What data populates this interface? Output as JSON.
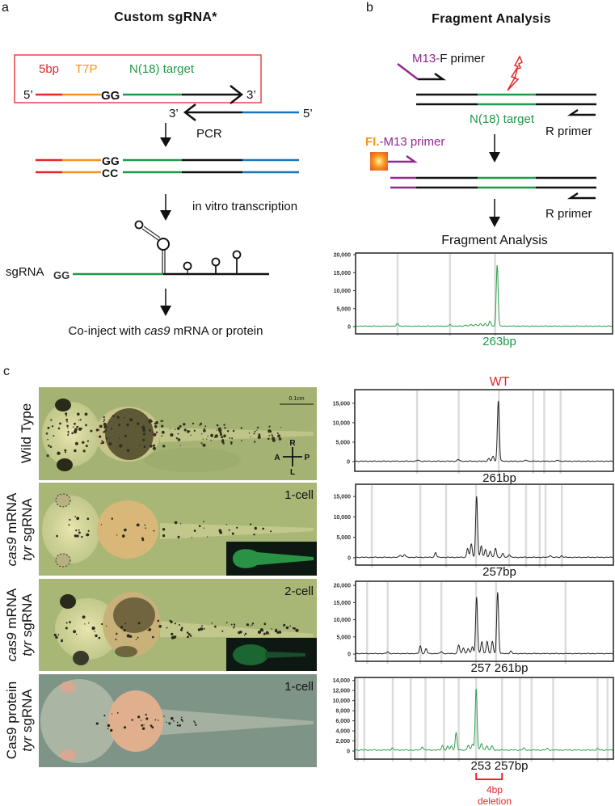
{
  "panel_a": {
    "letter": "a",
    "title": "Custom sgRNA*",
    "label_5bp": "5bp",
    "label_t7p": "T7P",
    "label_target": "N(18) target",
    "five_prime": "5’",
    "three_prime": "3’",
    "gg": "GG",
    "cc": "CC",
    "pcr": "PCR",
    "ivt": "in vitro transcription",
    "sgrna": "sgRNA",
    "coinject_pre": "Co-inject with ",
    "coinject_italic": "cas9",
    "coinject_post": " mRNA or protein"
  },
  "panel_b": {
    "letter": "b",
    "title": "Fragment Analysis",
    "m13f_prefix": "M13-",
    "m13f_suffix": "F primer",
    "target": "N(18) target",
    "r_primer": "R primer",
    "fl": "FI.",
    "fl_suffix": "-M13 primer",
    "fragment_analysis": "Fragment Analysis"
  },
  "panel_c": {
    "letter": "c",
    "wt_label": "WT",
    "scale_bar": "0.1cm",
    "compass": {
      "r": "R",
      "l": "L",
      "a": "A",
      "p": "P"
    },
    "rows": [
      {
        "line1": "Wild Type",
        "stage": ""
      },
      {
        "line1_italic": "cas9",
        "line1": " mRNA",
        "line2_italic": "tyr",
        "line2": " sgRNA",
        "stage": "1-cell"
      },
      {
        "line1_italic": "cas9",
        "line1": " mRNA",
        "line2_italic": "tyr",
        "line2": " sgRNA",
        "stage": "2-cell"
      },
      {
        "line1": "Cas9 protein",
        "line2_italic": "tyr",
        "line2": " sgRNA",
        "stage": "1-cell"
      }
    ],
    "deletion_line1": "4bp",
    "deletion_line2": "deletion"
  },
  "colors": {
    "red": "#e8262b",
    "orange": "#f7941d",
    "green": "#1e9a48",
    "blue": "#1b75bc",
    "purple": "#92278f",
    "trace_green": "#2e9e4a",
    "trace_black": "#222222",
    "bin_gray": "#dcdcdc"
  },
  "chart_data": [
    {
      "type": "line",
      "title": "Fragment Analysis",
      "peak_label": "263bp",
      "label_color": "#1e9a48",
      "trace_color": "#2e9e4a",
      "xlim": [
        236,
        285
      ],
      "ylim": [
        -2000,
        20450
      ],
      "yticks": [
        0,
        5000,
        10000,
        15000,
        20000
      ],
      "baseline": 150,
      "peaks": [
        [
          263,
          17000
        ],
        [
          261.6,
          1400
        ],
        [
          260.7,
          800
        ],
        [
          259.8,
          700
        ],
        [
          258.9,
          600
        ],
        [
          258,
          500
        ],
        [
          257,
          350
        ],
        [
          254,
          350
        ],
        [
          244,
          700
        ]
      ],
      "bins": [
        244,
        254,
        262.6
      ]
    },
    {
      "type": "line",
      "title": "WT",
      "peak_label": "261bp",
      "label_color": "#111111",
      "trace_color": "#222222",
      "xlim": [
        234,
        283
      ],
      "ylim": [
        -2500,
        18500
      ],
      "yticks": [
        0,
        5000,
        10000,
        15000
      ],
      "baseline": 100,
      "peaks": [
        [
          261.2,
          15500
        ],
        [
          260.2,
          1200
        ],
        [
          259.4,
          700
        ],
        [
          253.6,
          500
        ],
        [
          246,
          300
        ],
        [
          266.5,
          300
        ],
        [
          272.5,
          250
        ]
      ],
      "bins": [
        245.8,
        253.7,
        261.3,
        267.8,
        269.9,
        273
      ]
    },
    {
      "type": "line",
      "title": "cas9 mRNA tyr sgRNA 1-cell",
      "peak_label": "257bp",
      "label_color": "#111111",
      "trace_color": "#222222",
      "xlim": [
        234,
        283
      ],
      "ylim": [
        -1800,
        18000
      ],
      "yticks": [
        0,
        5000,
        10000,
        15000
      ],
      "baseline": 100,
      "peaks": [
        [
          257,
          15000
        ],
        [
          255.3,
          2200
        ],
        [
          256,
          3200
        ],
        [
          257.9,
          2800
        ],
        [
          258.7,
          2000
        ],
        [
          259.6,
          1500
        ],
        [
          260.6,
          2300
        ],
        [
          262,
          900
        ],
        [
          263.2,
          700
        ],
        [
          249.2,
          1200
        ],
        [
          242.5,
          600
        ],
        [
          243.3,
          700
        ],
        [
          271,
          500
        ],
        [
          273.2,
          400
        ]
      ],
      "bins": [
        237.1,
        246.3,
        251.2,
        256.9,
        263.2,
        266.4,
        269,
        270.1,
        273.2
      ]
    },
    {
      "type": "line",
      "title": "cas9 mRNA tyr sgRNA 2-cell",
      "peak_label": "257 261bp",
      "label_color": "#111111",
      "trace_color": "#222222",
      "xlim": [
        234,
        283
      ],
      "ylim": [
        -2100,
        21200
      ],
      "yticks": [
        0,
        5000,
        10000,
        15000,
        20000
      ],
      "baseline": 150,
      "peaks": [
        [
          257,
          16500
        ],
        [
          261,
          17800
        ],
        [
          258,
          3500
        ],
        [
          259,
          3600
        ],
        [
          260,
          3500
        ],
        [
          253.6,
          2500
        ],
        [
          254.5,
          1700
        ],
        [
          255.4,
          1500
        ],
        [
          256.2,
          2000
        ],
        [
          246.3,
          2200
        ],
        [
          247.4,
          1400
        ],
        [
          240.1,
          500
        ],
        [
          250.3,
          600
        ],
        [
          263.5,
          700
        ]
      ],
      "bins": [
        236.2,
        240.1,
        246.3,
        250.3,
        256.9,
        260.7,
        273.9
      ]
    },
    {
      "type": "line",
      "title": "Cas9 protein tyr sgRNA 1-cell",
      "peak_label": "253 257bp",
      "label_color": "#111111",
      "trace_color": "#2e9e4a",
      "xlim": [
        234,
        283
      ],
      "ylim": [
        -1600,
        14600
      ],
      "yticks": [
        0,
        2000,
        4000,
        6000,
        8000,
        10000,
        12000,
        14000
      ],
      "baseline": 200,
      "peaks": [
        [
          257,
          12200
        ],
        [
          253.2,
          3400
        ],
        [
          258,
          1300
        ],
        [
          259,
          900
        ],
        [
          260,
          800
        ],
        [
          250.6,
          900
        ],
        [
          251.6,
          700
        ],
        [
          252.3,
          800
        ],
        [
          255.5,
          1000
        ],
        [
          256.3,
          1200
        ],
        [
          246.8,
          700
        ],
        [
          241.1,
          400
        ],
        [
          266,
          400
        ],
        [
          270.5,
          300
        ],
        [
          280,
          250
        ]
      ],
      "bins": [
        234.5,
        235.8,
        241.2,
        244.6,
        247.4,
        250.9,
        253.7,
        257,
        261.9,
        265.3,
        267.5,
        271.6,
        280,
        281.9
      ],
      "annotation": {
        "from": 257,
        "to": 261.9,
        "text": "4bp deletion"
      }
    }
  ]
}
